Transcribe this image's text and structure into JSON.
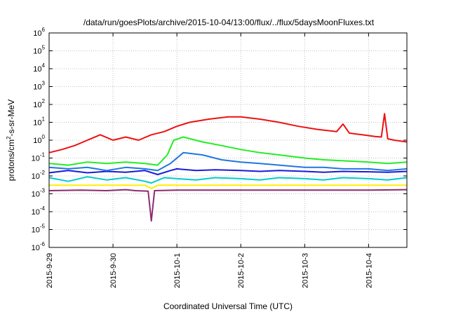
{
  "chart_data": {
    "type": "line",
    "title": "/data/run/goesPlots/archive/2015-10-04/13:00/flux/../flux/5daysMoonFluxes.txt",
    "xlabel": "Coordinated Universal Time (UTC)",
    "ylabel_base": "protons/cm",
    "ylabel_sup": "2",
    "ylabel_rest": "-s-sr-MeV",
    "y_scale": "log",
    "ylim": [
      1e-06,
      1000000.0
    ],
    "y_ticks": [
      {
        "base": "10",
        "exp": "-6",
        "value": 1e-06
      },
      {
        "base": "10",
        "exp": "-5",
        "value": 1e-05
      },
      {
        "base": "10",
        "exp": "-4",
        "value": 0.0001
      },
      {
        "base": "10",
        "exp": "-3",
        "value": 0.001
      },
      {
        "base": "10",
        "exp": "-2",
        "value": 0.01
      },
      {
        "base": "10",
        "exp": "-1",
        "value": 0.1
      },
      {
        "base": "10",
        "exp": "0",
        "value": 1
      },
      {
        "base": "10",
        "exp": "1",
        "value": 10
      },
      {
        "base": "10",
        "exp": "2",
        "value": 100
      },
      {
        "base": "10",
        "exp": "3",
        "value": 1000
      },
      {
        "base": "10",
        "exp": "4",
        "value": 10000
      },
      {
        "base": "10",
        "exp": "5",
        "value": 100000
      },
      {
        "base": "10",
        "exp": "6",
        "value": 1000000
      }
    ],
    "x_unit": "days",
    "xlim": [
      0,
      5.6
    ],
    "x_ticks": [
      {
        "label": "2015-9-29",
        "value": 0
      },
      {
        "label": "2015-9-30",
        "value": 1
      },
      {
        "label": "2015-10-1",
        "value": 2
      },
      {
        "label": "2015-10-2",
        "value": 3
      },
      {
        "label": "2015-10-3",
        "value": 4
      },
      {
        "label": "2015-10-4",
        "value": 5
      }
    ],
    "grid": true,
    "series": [
      {
        "color": "#8b2c6e",
        "x": [
          0,
          0.5,
          0.9,
          1.2,
          1.35,
          1.55,
          1.6,
          1.65,
          2.0,
          2.5,
          3.0,
          3.5,
          4.0,
          4.5,
          5.0,
          5.6
        ],
        "y": [
          0.0015,
          0.0016,
          0.0015,
          0.0017,
          0.0015,
          0.0014,
          3e-05,
          0.0015,
          0.0016,
          0.0016,
          0.0016,
          0.0016,
          0.0016,
          0.0016,
          0.0016,
          0.0017
        ]
      },
      {
        "color": "#ffee00",
        "x": [
          0,
          0.5,
          1.0,
          1.5,
          1.6,
          1.7,
          2.0,
          2.5,
          3.0,
          3.5,
          4.0,
          4.5,
          5.0,
          5.6
        ],
        "y": [
          0.003,
          0.003,
          0.003,
          0.003,
          0.002,
          0.003,
          0.003,
          0.003,
          0.003,
          0.003,
          0.003,
          0.003,
          0.003,
          0.003
        ]
      },
      {
        "color": "#00cccc",
        "x": [
          0,
          0.3,
          0.6,
          0.9,
          1.2,
          1.5,
          1.6,
          1.8,
          2.0,
          2.3,
          2.6,
          3.0,
          3.3,
          3.6,
          4.0,
          4.3,
          4.6,
          5.0,
          5.3,
          5.6
        ],
        "y": [
          0.008,
          0.005,
          0.009,
          0.006,
          0.008,
          0.005,
          0.004,
          0.008,
          0.007,
          0.006,
          0.008,
          0.007,
          0.006,
          0.008,
          0.007,
          0.006,
          0.008,
          0.007,
          0.006,
          0.008
        ]
      },
      {
        "color": "#1a1adc",
        "x": [
          0,
          0.3,
          0.6,
          0.9,
          1.2,
          1.5,
          1.7,
          1.9,
          2.0,
          2.3,
          2.6,
          3.0,
          3.3,
          3.6,
          4.0,
          4.3,
          4.6,
          5.0,
          5.3,
          5.6
        ],
        "y": [
          0.015,
          0.02,
          0.015,
          0.018,
          0.016,
          0.02,
          0.012,
          0.02,
          0.025,
          0.02,
          0.022,
          0.02,
          0.018,
          0.02,
          0.018,
          0.016,
          0.018,
          0.017,
          0.016,
          0.018
        ]
      },
      {
        "color": "#1f78e0",
        "x": [
          0,
          0.3,
          0.6,
          0.9,
          1.2,
          1.5,
          1.7,
          1.9,
          2.1,
          2.4,
          2.7,
          3.0,
          3.3,
          3.6,
          4.0,
          4.3,
          4.6,
          5.0,
          5.3,
          5.6
        ],
        "y": [
          0.03,
          0.025,
          0.03,
          0.02,
          0.03,
          0.025,
          0.02,
          0.05,
          0.2,
          0.15,
          0.08,
          0.06,
          0.05,
          0.04,
          0.03,
          0.03,
          0.025,
          0.025,
          0.02,
          0.025
        ]
      },
      {
        "color": "#22ee22",
        "x": [
          0,
          0.3,
          0.6,
          0.9,
          1.2,
          1.5,
          1.7,
          1.85,
          1.95,
          2.1,
          2.4,
          2.7,
          3.0,
          3.3,
          3.6,
          4.0,
          4.3,
          4.6,
          5.0,
          5.3,
          5.6
        ],
        "y": [
          0.05,
          0.04,
          0.06,
          0.05,
          0.06,
          0.05,
          0.04,
          0.15,
          1.0,
          1.5,
          0.8,
          0.5,
          0.3,
          0.2,
          0.15,
          0.1,
          0.08,
          0.07,
          0.06,
          0.05,
          0.06
        ]
      },
      {
        "color": "#ee1111",
        "x": [
          0,
          0.2,
          0.4,
          0.6,
          0.8,
          1.0,
          1.2,
          1.4,
          1.6,
          1.8,
          2.0,
          2.2,
          2.5,
          2.8,
          3.0,
          3.3,
          3.6,
          3.9,
          4.2,
          4.5,
          4.6,
          4.7,
          4.9,
          5.0,
          5.1,
          5.2,
          5.25,
          5.3,
          5.4,
          5.5,
          5.6
        ],
        "y": [
          0.2,
          0.3,
          0.5,
          1.0,
          2.0,
          1.0,
          1.5,
          1.0,
          2.0,
          3.0,
          6.0,
          10,
          15,
          20,
          20,
          15,
          10,
          6,
          4,
          3,
          8,
          2.5,
          2.0,
          1.8,
          1.6,
          1.5,
          30,
          1.2,
          1.0,
          0.9,
          0.8
        ]
      }
    ]
  }
}
